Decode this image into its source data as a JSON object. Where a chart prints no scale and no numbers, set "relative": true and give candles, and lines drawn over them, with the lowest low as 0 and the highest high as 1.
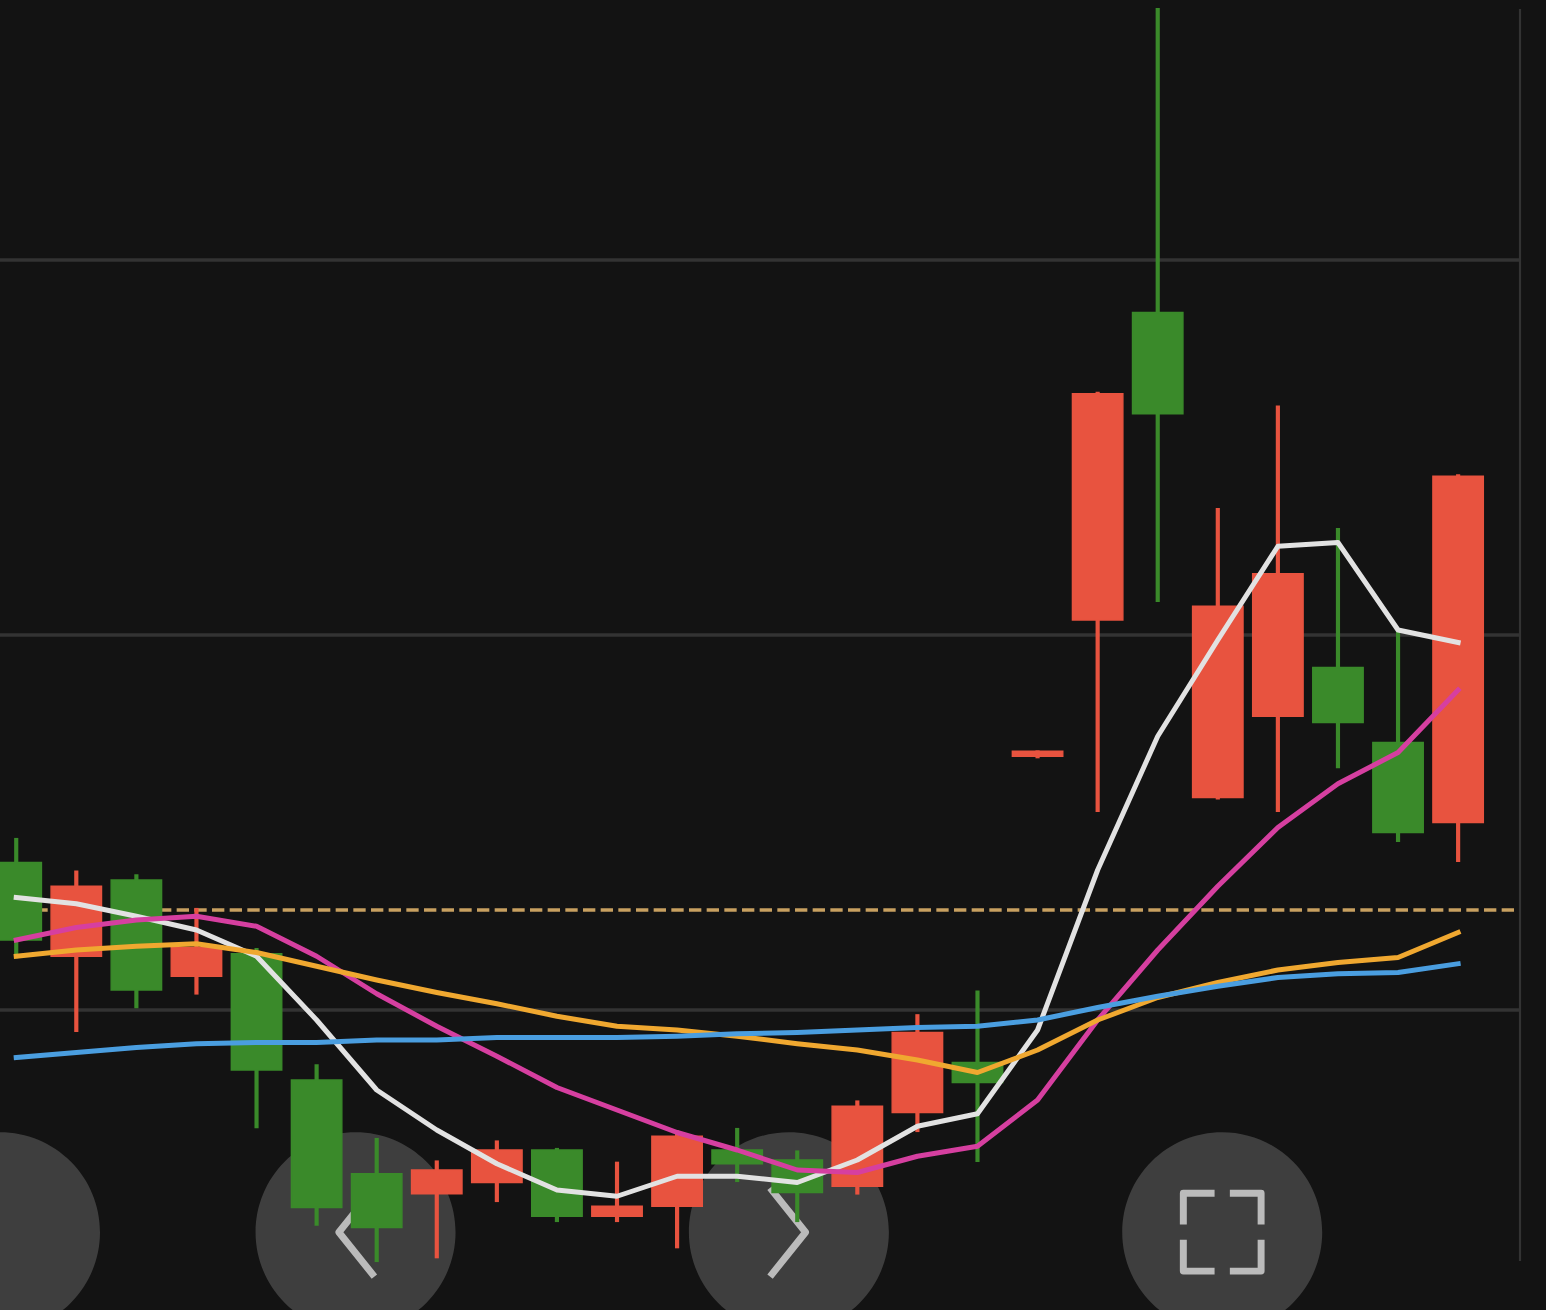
{
  "chart_data": {
    "type": "candlestick",
    "relative": true,
    "categories": [
      null,
      null,
      null,
      null,
      null,
      null,
      null,
      null,
      null,
      null,
      null,
      null,
      null,
      null,
      null,
      null,
      null,
      null,
      null,
      null,
      null,
      null,
      null,
      null,
      null
    ],
    "ohlc": [
      [
        0.318,
        0.336,
        0.243,
        0.256
      ],
      [
        0.243,
        0.31,
        0.184,
        0.299
      ],
      [
        0.304,
        0.307,
        0.203,
        0.216
      ],
      [
        0.227,
        0.28,
        0.214,
        0.25
      ],
      [
        0.245,
        0.248,
        0.107,
        0.152
      ],
      [
        0.144,
        0.155,
        0.029,
        0.042
      ],
      [
        0.069,
        0.096,
        0.0,
        0.026
      ],
      [
        0.053,
        0.078,
        0.003,
        0.072
      ],
      [
        0.062,
        0.094,
        0.048,
        0.088
      ],
      [
        0.088,
        0.088,
        0.032,
        0.035
      ],
      [
        0.035,
        0.077,
        0.032,
        0.043
      ],
      [
        0.043,
        0.102,
        0.011,
        0.099
      ],
      [
        0.088,
        0.104,
        0.064,
        0.077
      ],
      [
        0.08,
        0.086,
        0.032,
        0.054
      ],
      [
        0.059,
        0.126,
        0.054,
        0.123
      ],
      [
        0.118,
        0.195,
        0.104,
        0.182
      ],
      [
        0.158,
        0.214,
        0.08,
        0.142
      ],
      [
        0.403,
        0.406,
        0.403,
        0.406
      ],
      [
        0.512,
        0.693,
        0.36,
        0.693
      ],
      [
        0.758,
        1.0,
        0.528,
        0.677
      ],
      [
        0.37,
        0.6,
        0.37,
        0.523
      ],
      [
        0.435,
        0.682,
        0.36,
        0.549
      ],
      [
        0.474,
        0.584,
        0.395,
        0.43
      ],
      [
        0.414,
        0.502,
        0.336,
        0.342
      ],
      [
        0.35,
        0.627,
        0.32,
        0.627
      ]
    ],
    "colors": [
      "#3a8a2a",
      "#e8533f",
      "#3a8a2a",
      "#e8533f",
      "#3a8a2a",
      "#3a8a2a",
      "#3a8a2a",
      "#e8533f",
      "#e8533f",
      "#3a8a2a",
      "#e8533f",
      "#e8533f",
      "#3a8a2a",
      "#3a8a2a",
      "#e8533f",
      "#e8533f",
      "#3a8a2a",
      "#e8533f",
      "#e8533f",
      "#3a8a2a",
      "#e8533f",
      "#e8533f",
      "#3a8a2a",
      "#3a8a2a",
      "#e8533f"
    ],
    "series": [
      {
        "type": "line",
        "color": "#e2e2e2",
        "values": [
          0.29,
          0.285,
          0.275,
          0.264,
          0.243,
          0.192,
          0.136,
          0.104,
          0.077,
          0.056,
          0.051,
          0.067,
          0.067,
          0.062,
          0.08,
          0.107,
          0.117,
          0.184,
          0.312,
          0.419,
          0.496,
          0.571,
          0.574,
          0.504,
          0.494
        ]
      },
      {
        "type": "line",
        "color": "#d63fa0",
        "values": [
          0.256,
          0.266,
          0.272,
          0.275,
          0.267,
          0.243,
          0.213,
          0.187,
          0.163,
          0.138,
          0.12,
          0.102,
          0.088,
          0.072,
          0.07,
          0.083,
          0.091,
          0.128,
          0.192,
          0.248,
          0.299,
          0.346,
          0.381,
          0.406,
          0.456
        ]
      },
      {
        "type": "line",
        "color": "#f0a830",
        "values": [
          0.243,
          0.248,
          0.251,
          0.253,
          0.246,
          0.235,
          0.224,
          0.214,
          0.205,
          0.195,
          0.187,
          0.184,
          0.179,
          0.173,
          0.168,
          0.16,
          0.15,
          0.168,
          0.192,
          0.21,
          0.222,
          0.232,
          0.238,
          0.242,
          0.262
        ]
      },
      {
        "type": "line",
        "color": "#4a9ee0",
        "values": [
          0.162,
          0.166,
          0.17,
          0.173,
          0.174,
          0.174,
          0.176,
          0.176,
          0.178,
          0.178,
          0.178,
          0.179,
          0.181,
          0.182,
          0.184,
          0.186,
          0.187,
          0.192,
          0.202,
          0.211,
          0.219,
          0.226,
          0.229,
          0.23,
          0.237
        ]
      }
    ],
    "ref_lines": [
      {
        "axis": "y",
        "value": 0.28,
        "color": "#c8a060",
        "line_style": "dashed"
      },
      {
        "axis": "y",
        "value": 0.8,
        "color": "#333333",
        "line_style": "solid"
      },
      {
        "axis": "y",
        "value": 0.5,
        "color": "#333333",
        "line_style": "solid"
      },
      {
        "axis": "y",
        "value": 0.2,
        "color": "#333333",
        "line_style": "solid"
      }
    ],
    "line_style": "solid",
    "marker": "none",
    "legend": false
  }
}
